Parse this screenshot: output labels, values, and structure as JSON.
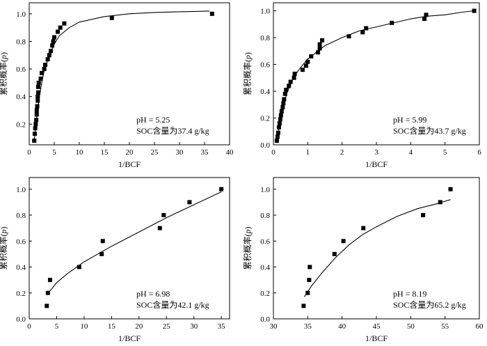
{
  "chart_data": [
    {
      "type": "scatter",
      "xlabel": "1/BCF",
      "ylabel": "累积概率(p)",
      "ylabel_main": "累积概率",
      "ylabel_var": "p",
      "xlim": [
        0,
        40
      ],
      "ylim": [
        0.05,
        1.08
      ],
      "xticks": [
        0,
        5,
        10,
        15,
        20,
        25,
        30,
        35,
        40
      ],
      "yticks": [
        0.2,
        0.4,
        0.6,
        0.8,
        1.0
      ],
      "annotation": [
        "pH = 5.25",
        "SOC含量为37.4 g/kg"
      ],
      "points": [
        {
          "x": 1.0,
          "y": 0.08
        },
        {
          "x": 1.1,
          "y": 0.13
        },
        {
          "x": 1.2,
          "y": 0.17
        },
        {
          "x": 1.3,
          "y": 0.2
        },
        {
          "x": 1.4,
          "y": 0.23
        },
        {
          "x": 1.5,
          "y": 0.27
        },
        {
          "x": 1.5,
          "y": 0.3
        },
        {
          "x": 1.6,
          "y": 0.33
        },
        {
          "x": 1.7,
          "y": 0.37
        },
        {
          "x": 1.7,
          "y": 0.4
        },
        {
          "x": 1.8,
          "y": 0.43
        },
        {
          "x": 1.8,
          "y": 0.47
        },
        {
          "x": 1.9,
          "y": 0.5
        },
        {
          "x": 2.3,
          "y": 0.53
        },
        {
          "x": 2.5,
          "y": 0.57
        },
        {
          "x": 3.0,
          "y": 0.6
        },
        {
          "x": 3.2,
          "y": 0.63
        },
        {
          "x": 3.7,
          "y": 0.67
        },
        {
          "x": 4.0,
          "y": 0.7
        },
        {
          "x": 4.3,
          "y": 0.73
        },
        {
          "x": 4.6,
          "y": 0.77
        },
        {
          "x": 4.8,
          "y": 0.8
        },
        {
          "x": 5.0,
          "y": 0.83
        },
        {
          "x": 5.7,
          "y": 0.87
        },
        {
          "x": 6.2,
          "y": 0.9
        },
        {
          "x": 7.0,
          "y": 0.93
        },
        {
          "x": 16.5,
          "y": 0.97
        },
        {
          "x": 36.5,
          "y": 1.0
        }
      ],
      "fit": [
        {
          "x": 1.0,
          "y": 0.09
        },
        {
          "x": 1.5,
          "y": 0.25
        },
        {
          "x": 2.0,
          "y": 0.39
        },
        {
          "x": 2.5,
          "y": 0.5
        },
        {
          "x": 3.0,
          "y": 0.59
        },
        {
          "x": 4.0,
          "y": 0.7
        },
        {
          "x": 5.0,
          "y": 0.78
        },
        {
          "x": 6.0,
          "y": 0.84
        },
        {
          "x": 8.0,
          "y": 0.9
        },
        {
          "x": 10.0,
          "y": 0.94
        },
        {
          "x": 15.0,
          "y": 0.98
        },
        {
          "x": 20.0,
          "y": 1.0
        },
        {
          "x": 25.0,
          "y": 1.01
        },
        {
          "x": 30.0,
          "y": 1.015
        },
        {
          "x": 36.0,
          "y": 1.02
        }
      ]
    },
    {
      "type": "scatter",
      "xlabel": "1/BCF",
      "ylabel": "累积概率(p)",
      "ylabel_main": "累积概率",
      "ylabel_var": "p",
      "xlim": [
        0,
        6
      ],
      "ylim": [
        0,
        1.06
      ],
      "xticks": [
        0,
        1,
        2,
        3,
        4,
        5,
        6
      ],
      "yticks": [
        0.0,
        0.2,
        0.4,
        0.6,
        0.8,
        1.0
      ],
      "annotation": [
        "pH = 5.99",
        "SOC含量为43.7 g/kg"
      ],
      "points": [
        {
          "x": 0.1,
          "y": 0.03
        },
        {
          "x": 0.12,
          "y": 0.06
        },
        {
          "x": 0.14,
          "y": 0.09
        },
        {
          "x": 0.16,
          "y": 0.13
        },
        {
          "x": 0.18,
          "y": 0.16
        },
        {
          "x": 0.2,
          "y": 0.19
        },
        {
          "x": 0.22,
          "y": 0.22
        },
        {
          "x": 0.24,
          "y": 0.25
        },
        {
          "x": 0.27,
          "y": 0.28
        },
        {
          "x": 0.29,
          "y": 0.31
        },
        {
          "x": 0.31,
          "y": 0.34
        },
        {
          "x": 0.34,
          "y": 0.38
        },
        {
          "x": 0.37,
          "y": 0.41
        },
        {
          "x": 0.45,
          "y": 0.44
        },
        {
          "x": 0.5,
          "y": 0.47
        },
        {
          "x": 0.6,
          "y": 0.5
        },
        {
          "x": 0.62,
          "y": 0.53
        },
        {
          "x": 0.85,
          "y": 0.56
        },
        {
          "x": 0.95,
          "y": 0.59
        },
        {
          "x": 1.0,
          "y": 0.62
        },
        {
          "x": 1.1,
          "y": 0.66
        },
        {
          "x": 1.3,
          "y": 0.69
        },
        {
          "x": 1.35,
          "y": 0.72
        },
        {
          "x": 1.35,
          "y": 0.75
        },
        {
          "x": 1.42,
          "y": 0.78
        },
        {
          "x": 2.2,
          "y": 0.81
        },
        {
          "x": 2.6,
          "y": 0.84
        },
        {
          "x": 2.7,
          "y": 0.87
        },
        {
          "x": 3.45,
          "y": 0.91
        },
        {
          "x": 4.4,
          "y": 0.94
        },
        {
          "x": 4.45,
          "y": 0.97
        },
        {
          "x": 5.85,
          "y": 1.0
        }
      ],
      "fit": [
        {
          "x": 0.1,
          "y": 0.02
        },
        {
          "x": 0.2,
          "y": 0.18
        },
        {
          "x": 0.3,
          "y": 0.3
        },
        {
          "x": 0.4,
          "y": 0.39
        },
        {
          "x": 0.6,
          "y": 0.51
        },
        {
          "x": 0.8,
          "y": 0.58
        },
        {
          "x": 1.0,
          "y": 0.64
        },
        {
          "x": 1.5,
          "y": 0.74
        },
        {
          "x": 2.0,
          "y": 0.8
        },
        {
          "x": 2.5,
          "y": 0.85
        },
        {
          "x": 3.0,
          "y": 0.88
        },
        {
          "x": 3.5,
          "y": 0.91
        },
        {
          "x": 4.0,
          "y": 0.94
        },
        {
          "x": 4.5,
          "y": 0.96
        },
        {
          "x": 5.0,
          "y": 0.97
        },
        {
          "x": 5.5,
          "y": 0.99
        },
        {
          "x": 5.85,
          "y": 1.0
        }
      ]
    },
    {
      "type": "scatter",
      "xlabel": "1/BCF",
      "ylabel": "累积概率(p)",
      "ylabel_main": "累积概率",
      "ylabel_var": "p",
      "xlim": [
        0,
        36.5
      ],
      "ylim": [
        0,
        1.09
      ],
      "xticks": [
        0,
        5,
        10,
        15,
        20,
        25,
        30,
        35
      ],
      "yticks": [
        0.0,
        0.2,
        0.4,
        0.6,
        0.8,
        1.0
      ],
      "annotation": [
        "pH = 6.98",
        "SOC含量为42.1 g/kg"
      ],
      "points": [
        {
          "x": 3.2,
          "y": 0.1
        },
        {
          "x": 3.4,
          "y": 0.2
        },
        {
          "x": 3.8,
          "y": 0.3
        },
        {
          "x": 9.1,
          "y": 0.4
        },
        {
          "x": 13.2,
          "y": 0.5
        },
        {
          "x": 13.4,
          "y": 0.6
        },
        {
          "x": 23.8,
          "y": 0.7
        },
        {
          "x": 24.5,
          "y": 0.8
        },
        {
          "x": 29.2,
          "y": 0.9
        },
        {
          "x": 35.0,
          "y": 1.0
        }
      ],
      "fit": [
        {
          "x": 3.5,
          "y": 0.2
        },
        {
          "x": 5.0,
          "y": 0.28
        },
        {
          "x": 7.0,
          "y": 0.35
        },
        {
          "x": 10.0,
          "y": 0.44
        },
        {
          "x": 15.0,
          "y": 0.56
        },
        {
          "x": 20.0,
          "y": 0.67
        },
        {
          "x": 25.0,
          "y": 0.78
        },
        {
          "x": 30.0,
          "y": 0.88
        },
        {
          "x": 35.0,
          "y": 0.98
        }
      ]
    },
    {
      "type": "scatter",
      "xlabel": "1/BCF",
      "ylabel": "累积概率(p)",
      "ylabel_main": "累积概率",
      "ylabel_var": "p",
      "xlim": [
        30,
        60
      ],
      "ylim": [
        0,
        1.09
      ],
      "xticks": [
        30,
        35,
        40,
        45,
        50,
        55,
        60
      ],
      "yticks": [
        0.0,
        0.2,
        0.4,
        0.6,
        0.8,
        1.0
      ],
      "annotation": [
        "pH = 8.19",
        "SOC含量为65.2 g/kg"
      ],
      "points": [
        {
          "x": 34.4,
          "y": 0.1
        },
        {
          "x": 35.0,
          "y": 0.2
        },
        {
          "x": 35.2,
          "y": 0.3
        },
        {
          "x": 35.3,
          "y": 0.4
        },
        {
          "x": 38.9,
          "y": 0.5
        },
        {
          "x": 40.2,
          "y": 0.6
        },
        {
          "x": 43.1,
          "y": 0.7
        },
        {
          "x": 51.8,
          "y": 0.8
        },
        {
          "x": 54.3,
          "y": 0.9
        },
        {
          "x": 55.8,
          "y": 1.0
        }
      ],
      "fit": [
        {
          "x": 34.5,
          "y": 0.17
        },
        {
          "x": 35.5,
          "y": 0.25
        },
        {
          "x": 37.0,
          "y": 0.35
        },
        {
          "x": 39.0,
          "y": 0.47
        },
        {
          "x": 41.0,
          "y": 0.57
        },
        {
          "x": 43.0,
          "y": 0.65
        },
        {
          "x": 45.0,
          "y": 0.71
        },
        {
          "x": 48.0,
          "y": 0.79
        },
        {
          "x": 51.0,
          "y": 0.85
        },
        {
          "x": 54.0,
          "y": 0.89
        },
        {
          "x": 55.8,
          "y": 0.92
        }
      ]
    }
  ]
}
